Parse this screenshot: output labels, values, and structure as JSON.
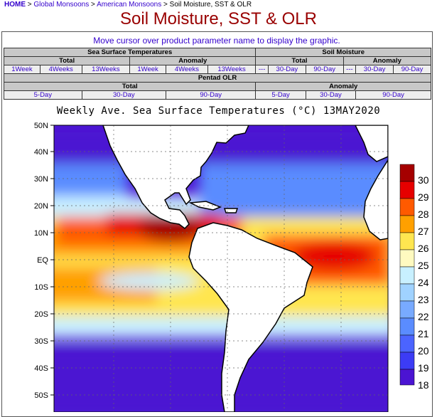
{
  "breadcrumb": {
    "home": "HOME",
    "sep": ">",
    "global": "Global Monsoons",
    "american": "American Monsoons",
    "current": "Soil Moisture, SST & OLR"
  },
  "page_title": "Soil Moisture, SST & OLR",
  "hint": "Move cursor over product parameter name to display the graphic.",
  "menu": {
    "sst": {
      "title": "Sea Surface Temperatures",
      "total": "Total",
      "anomaly": "Anomaly",
      "total_links": [
        "1Week",
        "4Weeks",
        "13Weeks"
      ],
      "anomaly_links": [
        "1Week",
        "4Weeks",
        "13Weeks"
      ]
    },
    "soil": {
      "title": "Soil Moisture",
      "total": "Total",
      "anomaly": "Anomaly",
      "total_links": [
        "---",
        "30-Day",
        "90-Day"
      ],
      "anomaly_links": [
        "---",
        "30-Day",
        "90-Day"
      ]
    },
    "olr": {
      "title": "Pentad OLR",
      "total": "Total",
      "anomaly": "Anomaly",
      "total_links": [
        "5-Day",
        "30-Day",
        "90-Day"
      ],
      "anomaly_links": [
        "5-Day",
        "30-Day",
        "90-Day"
      ]
    }
  },
  "map": {
    "title": "Weekly Ave. Sea Surface Temperatures (°C) 13MAY2020",
    "lat_labels": [
      "50N",
      "40N",
      "30N",
      "20N",
      "10N",
      "EQ",
      "10S",
      "20S",
      "30S",
      "40S",
      "50S"
    ],
    "colorbar": {
      "labels": [
        "30",
        "29",
        "28",
        "27",
        "26",
        "25",
        "24",
        "23",
        "22",
        "21",
        "20",
        "19",
        "18"
      ],
      "colors": [
        "#a50000",
        "#e60000",
        "#ff5a00",
        "#ffa000",
        "#ffe650",
        "#fffac0",
        "#c8f0ff",
        "#a0d2ff",
        "#78aaff",
        "#5a8cff",
        "#4b64ff",
        "#3c3cf5",
        "#4b14d2"
      ]
    },
    "colors": {
      "land": "#ffffff",
      "cold": "#4b14d2",
      "cool": "#5a8cff",
      "mild": "#c8f0ff",
      "warm": "#ffe650",
      "warm2": "#ffa000",
      "hot": "#ff5a00",
      "hot2": "#e60000",
      "hottest": "#a50000"
    }
  }
}
